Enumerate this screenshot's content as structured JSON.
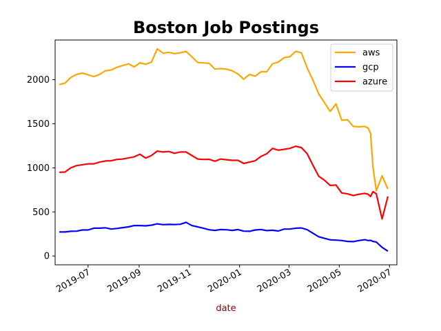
{
  "chart_data": {
    "type": "line",
    "title": "Boston Job Postings",
    "xlabel": "date",
    "ylabel": "",
    "xlim": [
      "2019-05-22",
      "2020-07-10"
    ],
    "ylim": [
      -100,
      2450
    ],
    "x_ticks": [
      {
        "date": "2019-07-01",
        "label": "2019-07"
      },
      {
        "date": "2019-09-01",
        "label": "2019-09"
      },
      {
        "date": "2019-11-01",
        "label": "2019-11"
      },
      {
        "date": "2020-01-01",
        "label": "2020-01"
      },
      {
        "date": "2020-03-01",
        "label": "2020-03"
      },
      {
        "date": "2020-05-01",
        "label": "2020-05"
      },
      {
        "date": "2020-07-01",
        "label": "2020-07"
      }
    ],
    "y_ticks": [
      0,
      500,
      1000,
      1500,
      2000
    ],
    "grid": false,
    "legend": "top-right",
    "x": [
      "2019-05-27",
      "2019-06-03",
      "2019-06-10",
      "2019-06-17",
      "2019-06-24",
      "2019-07-01",
      "2019-07-08",
      "2019-07-15",
      "2019-07-22",
      "2019-07-29",
      "2019-08-05",
      "2019-08-12",
      "2019-08-19",
      "2019-08-26",
      "2019-09-02",
      "2019-09-09",
      "2019-09-16",
      "2019-09-23",
      "2019-09-30",
      "2019-10-07",
      "2019-10-14",
      "2019-10-21",
      "2019-10-28",
      "2019-11-04",
      "2019-11-11",
      "2019-11-18",
      "2019-11-25",
      "2019-12-02",
      "2019-12-09",
      "2019-12-16",
      "2019-12-23",
      "2019-12-30",
      "2020-01-06",
      "2020-01-13",
      "2020-01-20",
      "2020-01-27",
      "2020-02-03",
      "2020-02-10",
      "2020-02-17",
      "2020-02-24",
      "2020-03-02",
      "2020-03-09",
      "2020-03-16",
      "2020-03-23",
      "2020-03-30",
      "2020-04-06",
      "2020-04-13",
      "2020-04-20",
      "2020-04-27",
      "2020-05-04",
      "2020-05-11",
      "2020-05-18",
      "2020-05-25",
      "2020-06-01",
      "2020-06-05",
      "2020-06-08",
      "2020-06-11",
      "2020-06-15",
      "2020-06-22",
      "2020-06-29"
    ],
    "series": [
      {
        "name": "aws",
        "color": "#ffa500",
        "values": [
          1945,
          1960,
          2025,
          2060,
          2075,
          2055,
          2035,
          2060,
          2100,
          2110,
          2140,
          2160,
          2180,
          2145,
          2190,
          2175,
          2200,
          2350,
          2300,
          2310,
          2295,
          2305,
          2320,
          2260,
          2195,
          2190,
          2185,
          2120,
          2125,
          2120,
          2100,
          2065,
          2005,
          2060,
          2040,
          2090,
          2090,
          2180,
          2200,
          2250,
          2260,
          2320,
          2305,
          2135,
          1995,
          1840,
          1740,
          1640,
          1725,
          1540,
          1545,
          1470,
          1465,
          1470,
          1450,
          1390,
          1005,
          740,
          910,
          760
        ]
      },
      {
        "name": "gcp",
        "color": "#0000ff",
        "values": [
          272,
          272,
          280,
          282,
          295,
          295,
          315,
          315,
          320,
          305,
          312,
          322,
          330,
          345,
          345,
          342,
          350,
          365,
          355,
          358,
          357,
          360,
          382,
          345,
          330,
          315,
          297,
          290,
          300,
          297,
          290,
          300,
          282,
          280,
          295,
          300,
          288,
          292,
          283,
          305,
          305,
          315,
          318,
          298,
          258,
          218,
          200,
          183,
          180,
          175,
          165,
          163,
          175,
          185,
          175,
          178,
          165,
          158,
          98,
          55
        ]
      },
      {
        "name": "azure",
        "color": "#ff0000",
        "values": [
          950,
          952,
          1000,
          1025,
          1035,
          1045,
          1045,
          1065,
          1078,
          1080,
          1095,
          1100,
          1112,
          1125,
          1155,
          1110,
          1140,
          1190,
          1180,
          1185,
          1165,
          1180,
          1180,
          1140,
          1100,
          1095,
          1097,
          1075,
          1100,
          1092,
          1085,
          1085,
          1050,
          1065,
          1080,
          1130,
          1160,
          1220,
          1200,
          1210,
          1220,
          1245,
          1230,
          1160,
          1030,
          905,
          860,
          800,
          805,
          715,
          705,
          685,
          700,
          710,
          700,
          675,
          730,
          705,
          420,
          675
        ]
      }
    ]
  }
}
